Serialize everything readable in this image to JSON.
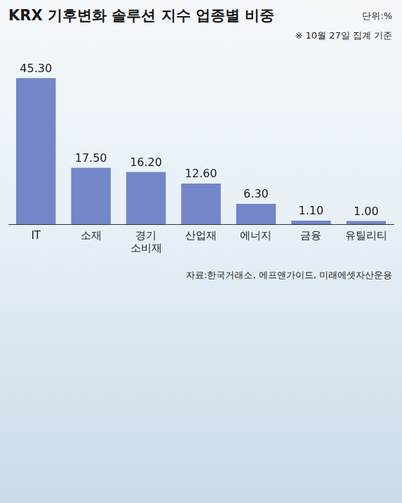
{
  "chart_data": {
    "type": "bar",
    "title": "KRX 기후변화 솔루션 지수 업종별 비중",
    "subtitle": "단위:%",
    "annotations": [
      "※ 10월 27일 집계 기준",
      "자료:한국거래소, 에프앤가이드, 미래에셋자산운용"
    ],
    "categories": [
      "IT",
      "소재",
      "경기 소비재",
      "산업재",
      "에너지",
      "금융",
      "유틸리티"
    ],
    "values": [
      45.3,
      17.5,
      16.2,
      12.6,
      6.3,
      1.1,
      1.0
    ],
    "value_labels": [
      "45.30",
      "17.50",
      "16.20",
      "12.60",
      "6.30",
      "1.10",
      "1.00"
    ],
    "color": "#7386c8",
    "ylim": [
      0,
      50
    ],
    "grid": false,
    "data_labels": true,
    "tick_labels": "x"
  }
}
